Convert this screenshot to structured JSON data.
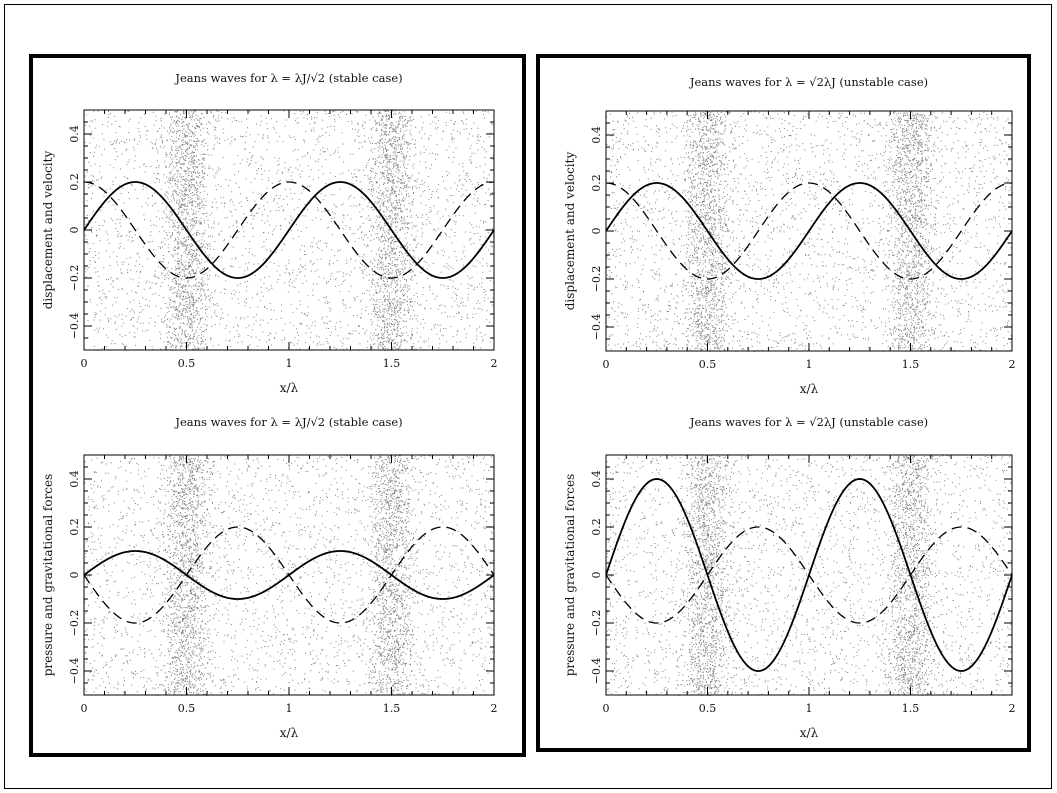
{
  "chart_data": [
    {
      "id": "stable-top",
      "type": "line",
      "title": "Jeans waves for λ = λJ/√2 (stable case)",
      "xlabel": "x/λ",
      "ylabel": "displacement and velocity",
      "xlim": [
        0,
        2
      ],
      "ylim": [
        -0.5,
        0.5
      ],
      "xticks": [
        0,
        0.5,
        1,
        1.5,
        2
      ],
      "xtick_labels": [
        "0",
        "0.5",
        "1",
        "1.5",
        "2"
      ],
      "yticks": [
        -0.4,
        -0.2,
        0,
        0.2,
        0.4
      ],
      "ytick_labels": [
        "−0.4",
        "−0.2",
        "0",
        "0.2",
        "0.4"
      ],
      "series": [
        {
          "style": "solid",
          "function": "sin",
          "amplitude": 0.2,
          "phase": 0
        },
        {
          "style": "dashed",
          "function": "cos",
          "amplitude": 0.2,
          "phase": 0
        }
      ],
      "background": "particle scatter, densest at x/λ = 0.5 and 1.5"
    },
    {
      "id": "stable-bottom",
      "type": "line",
      "title": "Jeans waves for λ = λJ/√2 (stable case)",
      "xlabel": "x/λ",
      "ylabel": "pressure and gravitational forces",
      "xlim": [
        0,
        2
      ],
      "ylim": [
        -0.5,
        0.5
      ],
      "xticks": [
        0,
        0.5,
        1,
        1.5,
        2
      ],
      "xtick_labels": [
        "0",
        "0.5",
        "1",
        "1.5",
        "2"
      ],
      "yticks": [
        -0.4,
        -0.2,
        0,
        0.2,
        0.4
      ],
      "ytick_labels": [
        "−0.4",
        "−0.2",
        "0",
        "0.2",
        "0.4"
      ],
      "series": [
        {
          "style": "solid",
          "function": "sin",
          "amplitude": 0.1,
          "phase": 0
        },
        {
          "style": "dashed",
          "function": "sin",
          "amplitude": -0.2,
          "phase": 0
        }
      ],
      "background": "particle scatter, densest at x/λ = 0.5 and 1.5"
    },
    {
      "id": "unstable-top",
      "type": "line",
      "title": "Jeans waves for λ = √2λJ (unstable case)",
      "xlabel": "x/λ",
      "ylabel": "displacement and velocity",
      "xlim": [
        0,
        2
      ],
      "ylim": [
        -0.5,
        0.5
      ],
      "xticks": [
        0,
        0.5,
        1,
        1.5,
        2
      ],
      "xtick_labels": [
        "0",
        "0.5",
        "1",
        "1.5",
        "2"
      ],
      "yticks": [
        -0.4,
        -0.2,
        0,
        0.2,
        0.4
      ],
      "ytick_labels": [
        "−0.4",
        "−0.2",
        "0",
        "0.2",
        "0.4"
      ],
      "series": [
        {
          "style": "solid",
          "function": "sin",
          "amplitude": 0.2,
          "phase": 0
        },
        {
          "style": "dashed",
          "function": "cos",
          "amplitude": 0.2,
          "phase": 0
        }
      ],
      "background": "particle scatter, densest at x/λ = 0.5 and 1.5"
    },
    {
      "id": "unstable-bottom",
      "type": "line",
      "title": "Jeans waves for λ = √2λJ (unstable case)",
      "xlabel": "x/λ",
      "ylabel": "pressure and gravitational forces",
      "xlim": [
        0,
        2
      ],
      "ylim": [
        -0.5,
        0.5
      ],
      "xticks": [
        0,
        0.5,
        1,
        1.5,
        2
      ],
      "xtick_labels": [
        "0",
        "0.5",
        "1",
        "1.5",
        "2"
      ],
      "yticks": [
        -0.4,
        -0.2,
        0,
        0.2,
        0.4
      ],
      "ytick_labels": [
        "−0.4",
        "−0.2",
        "0",
        "0.2",
        "0.4"
      ],
      "series": [
        {
          "style": "solid",
          "function": "sin",
          "amplitude": 0.4,
          "phase": 0
        },
        {
          "style": "dashed",
          "function": "sin",
          "amplitude": -0.2,
          "phase": 0
        }
      ],
      "background": "particle scatter, densest at x/λ = 0.5 and 1.5"
    }
  ]
}
